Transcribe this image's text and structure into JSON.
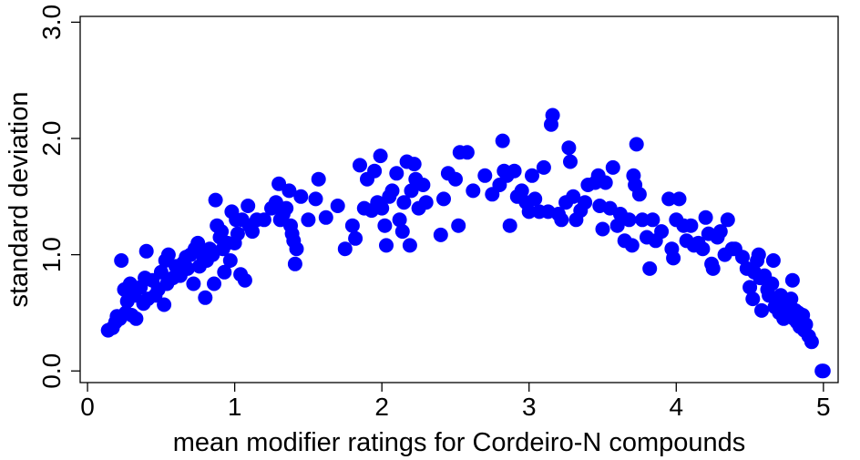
{
  "chart_data": {
    "type": "scatter",
    "xlabel": "mean modifier ratings for Cordeiro-N compounds",
    "ylabel": "standard deviation",
    "xlim": [
      -0.05,
      5.1
    ],
    "ylim": [
      -0.1,
      3.05
    ],
    "xticks": [
      0,
      1,
      2,
      3,
      4,
      5
    ],
    "xtick_labels": [
      "0",
      "1",
      "2",
      "3",
      "4",
      "5"
    ],
    "yticks": [
      0,
      1,
      2,
      3
    ],
    "ytick_labels": [
      "0.0",
      "1.0",
      "2.0",
      "3.0"
    ],
    "grid": false,
    "legend": "none",
    "point_color": "#0000ff",
    "points": [
      [
        0.14,
        0.35
      ],
      [
        0.17,
        0.37
      ],
      [
        0.19,
        0.42
      ],
      [
        0.2,
        0.47
      ],
      [
        0.22,
        0.45
      ],
      [
        0.23,
        0.95
      ],
      [
        0.25,
        0.7
      ],
      [
        0.26,
        0.5
      ],
      [
        0.27,
        0.6
      ],
      [
        0.29,
        0.75
      ],
      [
        0.3,
        0.48
      ],
      [
        0.32,
        0.65
      ],
      [
        0.33,
        0.45
      ],
      [
        0.36,
        0.72
      ],
      [
        0.38,
        0.58
      ],
      [
        0.39,
        0.8
      ],
      [
        0.4,
        1.03
      ],
      [
        0.41,
        0.62
      ],
      [
        0.44,
        0.78
      ],
      [
        0.46,
        0.65
      ],
      [
        0.48,
        0.7
      ],
      [
        0.5,
        0.85
      ],
      [
        0.52,
        0.57
      ],
      [
        0.53,
        0.95
      ],
      [
        0.54,
        0.75
      ],
      [
        0.55,
        1.0
      ],
      [
        0.58,
        0.8
      ],
      [
        0.6,
        0.9
      ],
      [
        0.62,
        0.85
      ],
      [
        0.63,
        0.82
      ],
      [
        0.65,
        0.93
      ],
      [
        0.67,
        0.98
      ],
      [
        0.68,
        0.88
      ],
      [
        0.7,
        1.0
      ],
      [
        0.72,
        0.75
      ],
      [
        0.73,
        1.05
      ],
      [
        0.75,
        1.1
      ],
      [
        0.76,
        0.9
      ],
      [
        0.78,
        1.0
      ],
      [
        0.8,
        0.63
      ],
      [
        0.81,
        0.95
      ],
      [
        0.83,
        1.05
      ],
      [
        0.85,
        1.0
      ],
      [
        0.86,
        0.75
      ],
      [
        0.87,
        1.47
      ],
      [
        0.88,
        1.25
      ],
      [
        0.9,
        1.15
      ],
      [
        0.91,
        1.2
      ],
      [
        0.92,
        1.05
      ],
      [
        0.93,
        0.85
      ],
      [
        0.95,
        1.1
      ],
      [
        0.97,
        0.95
      ],
      [
        0.98,
        1.37
      ],
      [
        1.0,
        1.1
      ],
      [
        1.01,
        1.3
      ],
      [
        1.02,
        1.18
      ],
      [
        1.04,
        0.83
      ],
      [
        1.05,
        1.3
      ],
      [
        1.07,
        0.78
      ],
      [
        1.09,
        1.42
      ],
      [
        1.1,
        1.25
      ],
      [
        1.12,
        1.2
      ],
      [
        1.15,
        1.3
      ],
      [
        1.2,
        1.3
      ],
      [
        1.25,
        1.4
      ],
      [
        1.28,
        1.45
      ],
      [
        1.3,
        1.61
      ],
      [
        1.31,
        1.3
      ],
      [
        1.33,
        1.35
      ],
      [
        1.35,
        1.4
      ],
      [
        1.37,
        1.55
      ],
      [
        1.38,
        1.25
      ],
      [
        1.39,
        1.18
      ],
      [
        1.4,
        1.12
      ],
      [
        1.41,
        0.92
      ],
      [
        1.42,
        1.05
      ],
      [
        1.45,
        1.5
      ],
      [
        1.5,
        1.3
      ],
      [
        1.55,
        1.48
      ],
      [
        1.57,
        1.65
      ],
      [
        1.62,
        1.32
      ],
      [
        1.7,
        1.42
      ],
      [
        1.75,
        1.05
      ],
      [
        1.8,
        1.25
      ],
      [
        1.82,
        1.14
      ],
      [
        1.85,
        1.77
      ],
      [
        1.88,
        1.4
      ],
      [
        1.9,
        1.65
      ],
      [
        1.93,
        1.38
      ],
      [
        1.95,
        1.72
      ],
      [
        1.97,
        1.45
      ],
      [
        1.99,
        1.85
      ],
      [
        2.0,
        1.4
      ],
      [
        2.02,
        1.25
      ],
      [
        2.03,
        1.08
      ],
      [
        2.05,
        1.5
      ],
      [
        2.07,
        1.55
      ],
      [
        2.1,
        1.7
      ],
      [
        2.12,
        1.3
      ],
      [
        2.14,
        1.2
      ],
      [
        2.15,
        1.45
      ],
      [
        2.17,
        1.8
      ],
      [
        2.19,
        1.08
      ],
      [
        2.2,
        1.55
      ],
      [
        2.22,
        1.78
      ],
      [
        2.23,
        1.65
      ],
      [
        2.25,
        1.4
      ],
      [
        2.28,
        1.6
      ],
      [
        2.3,
        1.45
      ],
      [
        2.4,
        1.17
      ],
      [
        2.42,
        1.48
      ],
      [
        2.45,
        1.7
      ],
      [
        2.5,
        1.65
      ],
      [
        2.52,
        1.25
      ],
      [
        2.53,
        1.88
      ],
      [
        2.58,
        1.88
      ],
      [
        2.62,
        1.55
      ],
      [
        2.7,
        1.68
      ],
      [
        2.75,
        1.52
      ],
      [
        2.8,
        1.6
      ],
      [
        2.82,
        1.98
      ],
      [
        2.83,
        1.72
      ],
      [
        2.85,
        1.68
      ],
      [
        2.87,
        1.25
      ],
      [
        2.9,
        1.72
      ],
      [
        2.92,
        1.5
      ],
      [
        2.95,
        1.55
      ],
      [
        2.98,
        1.45
      ],
      [
        3.0,
        1.37
      ],
      [
        3.02,
        1.68
      ],
      [
        3.04,
        1.48
      ],
      [
        3.07,
        1.37
      ],
      [
        3.1,
        1.75
      ],
      [
        3.13,
        1.37
      ],
      [
        3.15,
        2.12
      ],
      [
        3.16,
        2.2
      ],
      [
        3.2,
        1.35
      ],
      [
        3.22,
        1.3
      ],
      [
        3.25,
        1.45
      ],
      [
        3.27,
        1.92
      ],
      [
        3.28,
        1.8
      ],
      [
        3.3,
        1.5
      ],
      [
        3.32,
        1.3
      ],
      [
        3.35,
        1.38
      ],
      [
        3.38,
        1.45
      ],
      [
        3.4,
        1.6
      ],
      [
        3.45,
        1.62
      ],
      [
        3.47,
        1.68
      ],
      [
        3.48,
        1.42
      ],
      [
        3.5,
        1.22
      ],
      [
        3.52,
        1.62
      ],
      [
        3.55,
        1.4
      ],
      [
        3.57,
        1.75
      ],
      [
        3.6,
        1.25
      ],
      [
        3.62,
        1.35
      ],
      [
        3.65,
        1.12
      ],
      [
        3.68,
        1.3
      ],
      [
        3.7,
        1.08
      ],
      [
        3.71,
        1.68
      ],
      [
        3.72,
        1.6
      ],
      [
        3.73,
        1.95
      ],
      [
        3.75,
        1.52
      ],
      [
        3.77,
        1.3
      ],
      [
        3.8,
        1.15
      ],
      [
        3.82,
        0.88
      ],
      [
        3.84,
        1.3
      ],
      [
        3.86,
        1.12
      ],
      [
        3.9,
        1.2
      ],
      [
        3.95,
        1.48
      ],
      [
        3.97,
        1.05
      ],
      [
        3.98,
        0.97
      ],
      [
        4.0,
        1.3
      ],
      [
        4.02,
        1.48
      ],
      [
        4.05,
        1.25
      ],
      [
        4.07,
        1.12
      ],
      [
        4.1,
        1.25
      ],
      [
        4.12,
        1.08
      ],
      [
        4.15,
        1.1
      ],
      [
        4.18,
        1.05
      ],
      [
        4.2,
        1.32
      ],
      [
        4.22,
        1.18
      ],
      [
        4.24,
        0.92
      ],
      [
        4.25,
        0.88
      ],
      [
        4.28,
        1.15
      ],
      [
        4.3,
        1.2
      ],
      [
        4.33,
        1.0
      ],
      [
        4.35,
        1.3
      ],
      [
        4.38,
        1.05
      ],
      [
        4.4,
        1.05
      ],
      [
        4.45,
        0.98
      ],
      [
        4.48,
        0.88
      ],
      [
        4.5,
        0.72
      ],
      [
        4.52,
        0.62
      ],
      [
        4.53,
        0.85
      ],
      [
        4.55,
        0.95
      ],
      [
        4.56,
        1.0
      ],
      [
        4.57,
        0.8
      ],
      [
        4.58,
        0.52
      ],
      [
        4.6,
        0.82
      ],
      [
        4.62,
        0.7
      ],
      [
        4.63,
        0.65
      ],
      [
        4.65,
        0.75
      ],
      [
        4.66,
        0.95
      ],
      [
        4.67,
        0.55
      ],
      [
        4.68,
        0.6
      ],
      [
        4.7,
        0.5
      ],
      [
        4.71,
        0.65
      ],
      [
        4.72,
        0.58
      ],
      [
        4.73,
        0.45
      ],
      [
        4.74,
        0.52
      ],
      [
        4.75,
        0.6
      ],
      [
        4.76,
        0.48
      ],
      [
        4.77,
        0.55
      ],
      [
        4.78,
        0.62
      ],
      [
        4.79,
        0.78
      ],
      [
        4.8,
        0.45
      ],
      [
        4.81,
        0.52
      ],
      [
        4.82,
        0.42
      ],
      [
        4.83,
        0.5
      ],
      [
        4.84,
        0.38
      ],
      [
        4.85,
        0.45
      ],
      [
        4.86,
        0.48
      ],
      [
        4.87,
        0.35
      ],
      [
        4.88,
        0.4
      ],
      [
        4.9,
        0.3
      ],
      [
        4.92,
        0.25
      ],
      [
        4.99,
        0.0
      ],
      [
        5.0,
        0.0
      ]
    ]
  }
}
